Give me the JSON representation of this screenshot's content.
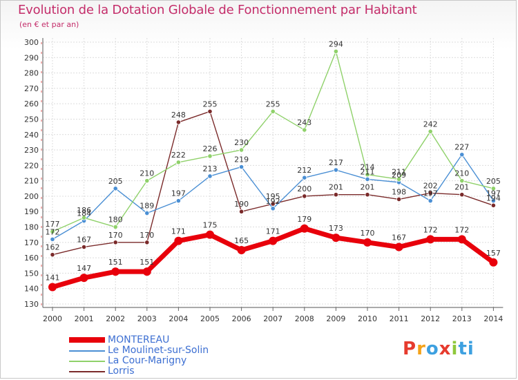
{
  "header": {
    "title": "Evolution de la Dotation Globale de Fonctionnement par Habitant",
    "subtitle": "(en € et par an)"
  },
  "brand": {
    "text": "Proxiti",
    "colors": [
      "#e63b2e",
      "#f4a21a",
      "#3da0e0",
      "#e63b2e",
      "#8fc83c",
      "#3da0e0",
      "#3da0e0"
    ]
  },
  "chart_data": {
    "type": "line",
    "title": "Evolution de la Dotation Globale de Fonctionnement par Habitant",
    "subtitle": "(en € et par an)",
    "xlabel": "",
    "ylabel": "",
    "x": [
      "2000",
      "2001",
      "2002",
      "2003",
      "2004",
      "2005",
      "2006",
      "2007",
      "2008",
      "2009",
      "2010",
      "2011",
      "2012",
      "2013",
      "2014"
    ],
    "ylim": [
      130,
      300
    ],
    "yticks": [
      130,
      140,
      150,
      160,
      170,
      180,
      190,
      200,
      210,
      220,
      230,
      240,
      250,
      260,
      270,
      280,
      290,
      300
    ],
    "grid": true,
    "legend_position": "bottom-left",
    "series": [
      {
        "name": "Lorris",
        "color": "#7a2a2a",
        "values": [
          162,
          167,
          170,
          170,
          248,
          255,
          190,
          195,
          200,
          201,
          201,
          198,
          202,
          201,
          194
        ],
        "labels": [
          "162",
          "167",
          "170",
          "170",
          "248",
          "255",
          "190",
          "195",
          "200",
          "201",
          "201",
          "198",
          "202",
          "201",
          "194"
        ]
      },
      {
        "name": "Le Moulinet-sur-Solin",
        "color": "#4a8fd4",
        "values": [
          172,
          184,
          205,
          189,
          197,
          213,
          219,
          192,
          212,
          217,
          211,
          209,
          197,
          227,
          197
        ],
        "labels": [
          "172",
          "184",
          "205",
          "189",
          "197",
          "213",
          "219",
          "192",
          "212",
          "217",
          "211",
          "209",
          "197",
          "227",
          "197"
        ]
      },
      {
        "name": "La Cour-Marigny",
        "color": "#8fd16a",
        "values": [
          177,
          186,
          180,
          210,
          222,
          226,
          230,
          255,
          243,
          294,
          214,
          211,
          242,
          210,
          205
        ],
        "labels": [
          "177",
          "186",
          "180",
          "210",
          "222",
          "226",
          "230",
          "255",
          "243",
          "294",
          "214",
          "211",
          "242",
          "210",
          "205"
        ]
      },
      {
        "name": "MONTEREAU",
        "color": "#e8000b",
        "values": [
          141,
          147,
          151,
          151,
          171,
          175,
          165,
          171,
          179,
          173,
          170,
          167,
          172,
          172,
          157
        ],
        "labels": [
          "141",
          "147",
          "151",
          "151",
          "171",
          "175",
          "165",
          "171",
          "179",
          "173",
          "170",
          "167",
          "172",
          "172",
          "157"
        ]
      }
    ],
    "legend": [
      "MONTEREAU",
      "Le Moulinet-sur-Solin",
      "La Cour-Marigny",
      "Lorris"
    ]
  }
}
